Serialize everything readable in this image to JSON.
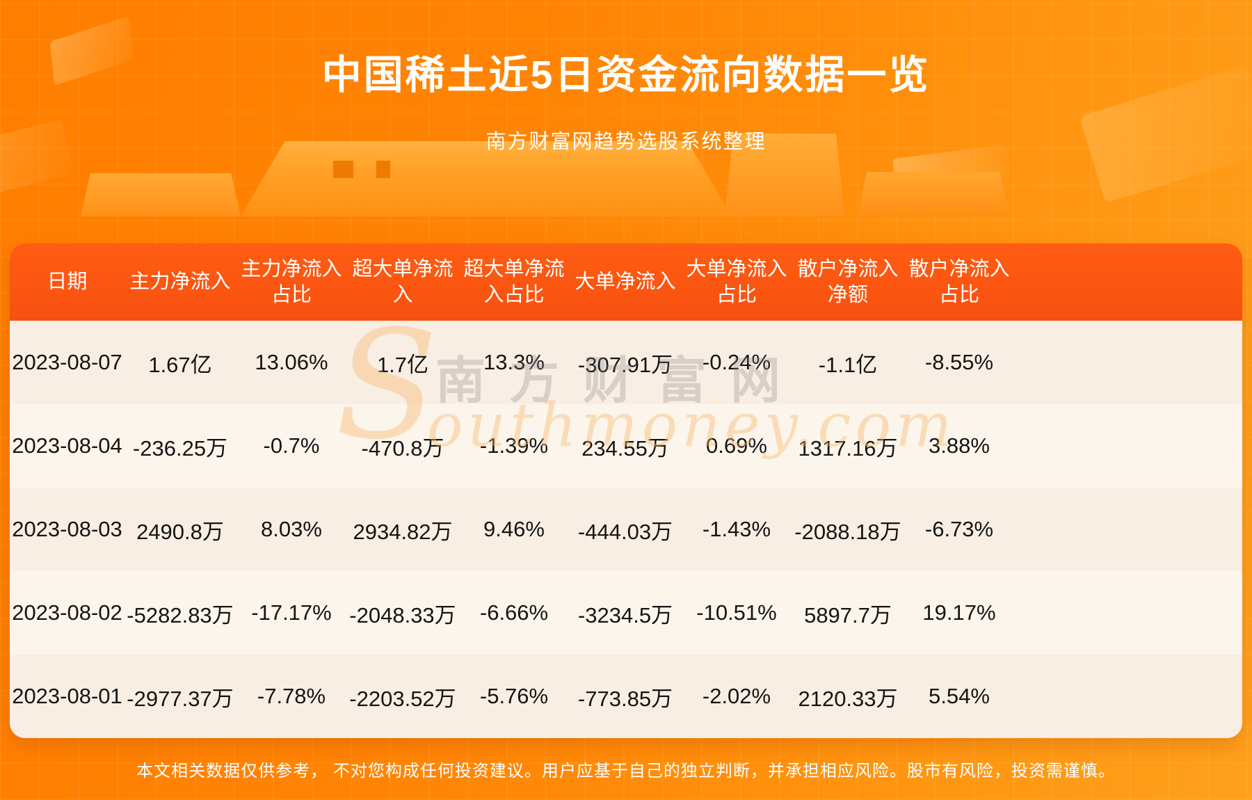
{
  "chart_data": {
    "type": "table",
    "title": "中国稀土近5日资金流向数据一览",
    "subtitle": "南方财富网趋势选股系统整理",
    "columns": [
      "日期",
      "主力净流入",
      "主力净流入占比",
      "超大单净流入",
      "超大单净流入占比",
      "大单净流入",
      "大单净流入占比",
      "散户净流入净额",
      "散户净流入占比"
    ],
    "rows": [
      [
        "2023-08-07",
        "1.67亿",
        "13.06%",
        "1.7亿",
        "13.3%",
        "-307.91万",
        "-0.24%",
        "-1.1亿",
        "-8.55%"
      ],
      [
        "2023-08-04",
        "-236.25万",
        "-0.7%",
        "-470.8万",
        "-1.39%",
        "234.55万",
        "0.69%",
        "1317.16万",
        "3.88%"
      ],
      [
        "2023-08-03",
        "2490.8万",
        "8.03%",
        "2934.82万",
        "9.46%",
        "-444.03万",
        "-1.43%",
        "-2088.18万",
        "-6.73%"
      ],
      [
        "2023-08-02",
        "-5282.83万",
        "-17.17%",
        "-2048.33万",
        "-6.66%",
        "-3234.5万",
        "-10.51%",
        "5897.7万",
        "19.17%"
      ],
      [
        "2023-08-01",
        "-2977.37万",
        "-7.78%",
        "-2203.52万",
        "-5.76%",
        "-773.85万",
        "-2.02%",
        "2120.33万",
        "5.54%"
      ]
    ]
  },
  "watermark": {
    "initial": "S",
    "cn": "南方财富网",
    "en": "outhmoney.com"
  },
  "footer": {
    "disclaimer": "本文相关数据仅供参考， 不对您构成任何投资建议。用户应基于自己的独立判断，并承担相应风险。股市有风险，投资需谨慎。"
  },
  "colors": {
    "page_orange": "#FF8404",
    "header_orange": "#FB5511",
    "podium_orange": "#FFA127",
    "row_dark": "#F9EEE4",
    "row_light": "#FCF5EC",
    "text_dark": "#141414",
    "text_white": "#FFFFFF"
  }
}
